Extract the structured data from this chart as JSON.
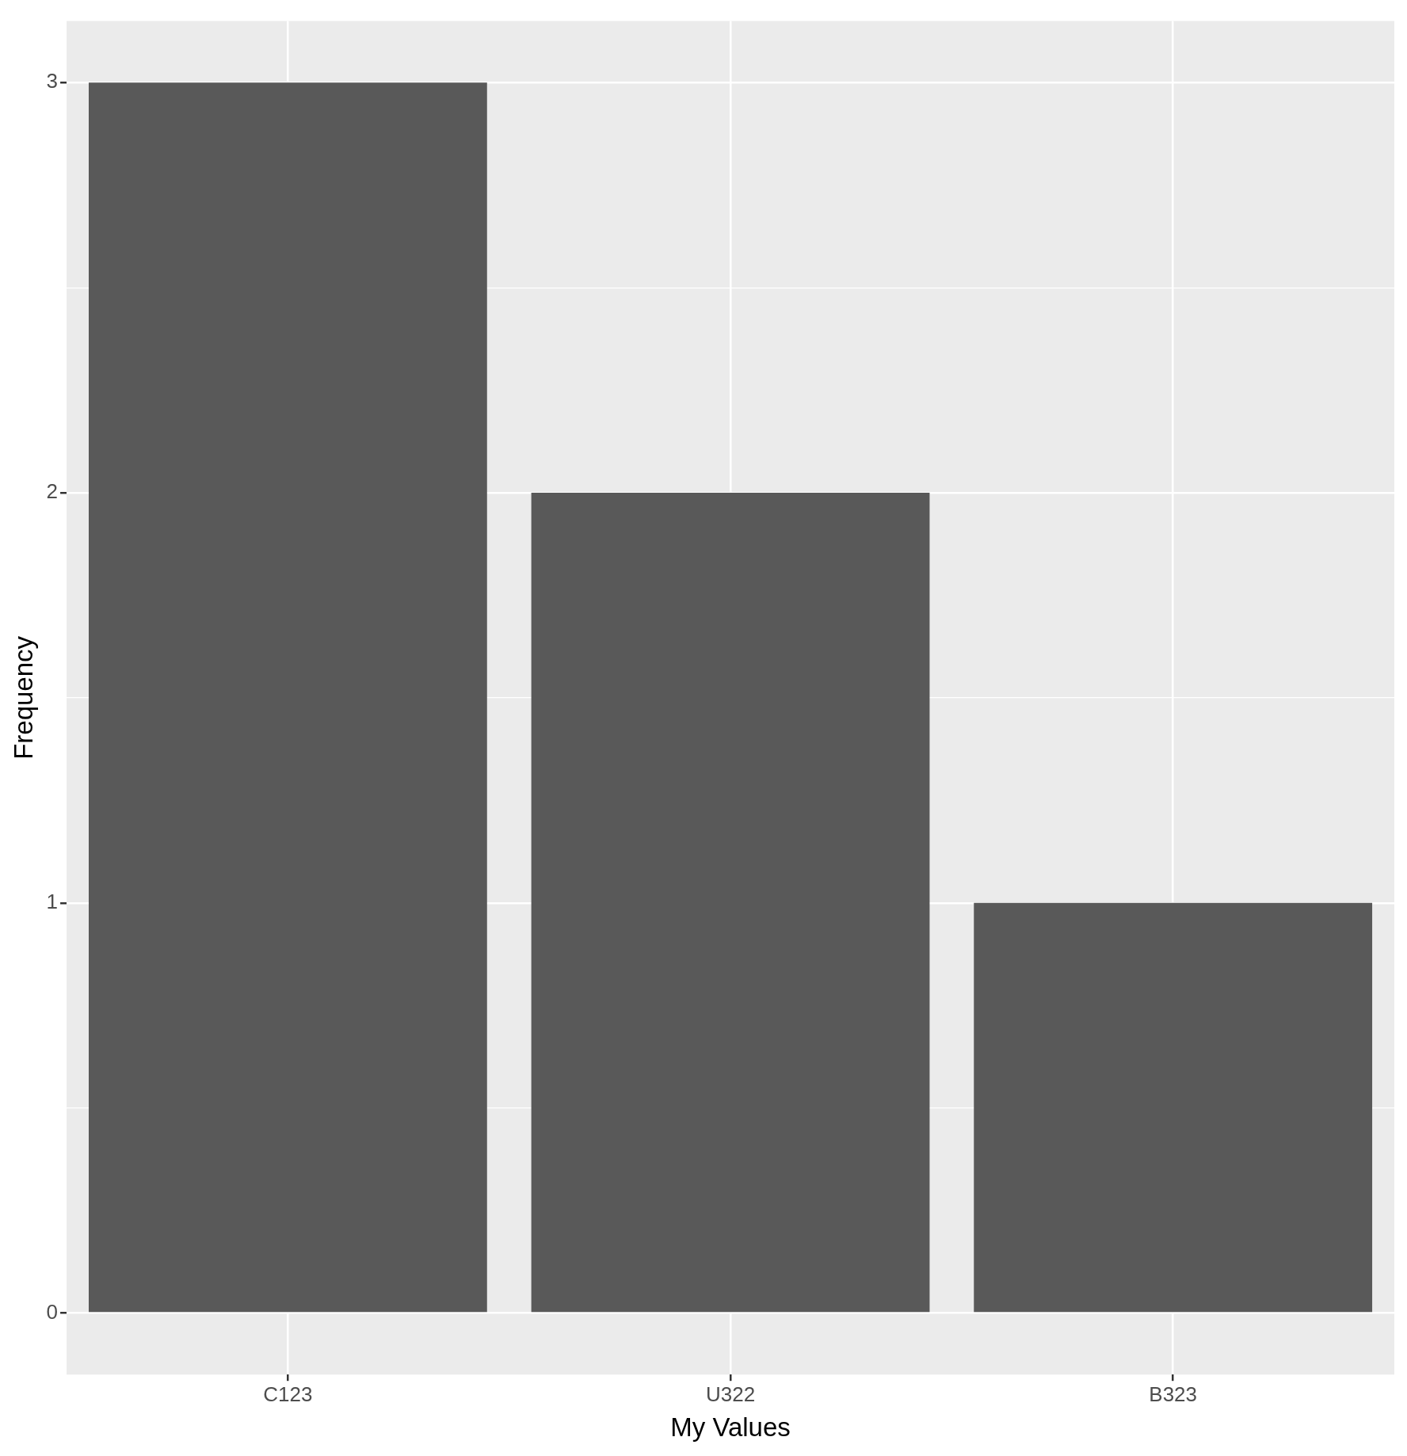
{
  "chart_data": {
    "type": "bar",
    "xlabel": "My Values",
    "ylabel": "Frequency",
    "categories": [
      "C123",
      "U322",
      "B323"
    ],
    "values": [
      3,
      2,
      1
    ],
    "color": "#595959",
    "ylim": [
      -0.15,
      3.15
    ],
    "yticks": [
      0,
      {
        "value": 0.5,
        "label": null
      },
      1,
      {
        "value": 1.5,
        "label": null
      },
      2,
      {
        "value": 2.5,
        "label": null
      },
      3
    ],
    "grid": true,
    "legend": false
  }
}
